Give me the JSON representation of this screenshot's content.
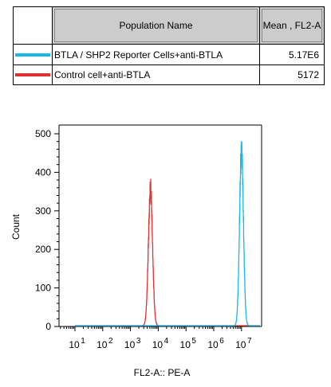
{
  "legend": {
    "header_name": "Population Name",
    "header_value": "Mean , FL2-A",
    "rows": [
      {
        "name": "BTLA / SHP2 Reporter Cells+anti-BTLA",
        "value": "5.17E6",
        "color": "#1ab8e8"
      },
      {
        "name": "Control cell+anti-BTLA",
        "value": "5172",
        "color": "#e03030"
      }
    ]
  },
  "chart_data": {
    "type": "line",
    "xlabel": "FL2-A:: PE-A",
    "ylabel": "Count",
    "xscale": "log",
    "xlim": [
      1,
      7
    ],
    "ylim": [
      0,
      500
    ],
    "y_ticks": [
      0,
      100,
      200,
      300,
      400,
      500
    ],
    "x_tick_base": "10",
    "x_tick_exponents": [
      "1",
      "2",
      "3",
      "4",
      "5",
      "6",
      "7"
    ],
    "series": [
      {
        "name": "Control cell+anti-BTLA",
        "color": "#e03030",
        "peak_log10": 3.72,
        "peak_count": 350,
        "sigma_log10": 0.075
      },
      {
        "name": "BTLA / SHP2 Reporter Cells+anti-BTLA",
        "color": "#1ab8e8",
        "peak_log10": 7.0,
        "peak_count": 455,
        "sigma_log10": 0.07
      }
    ]
  }
}
